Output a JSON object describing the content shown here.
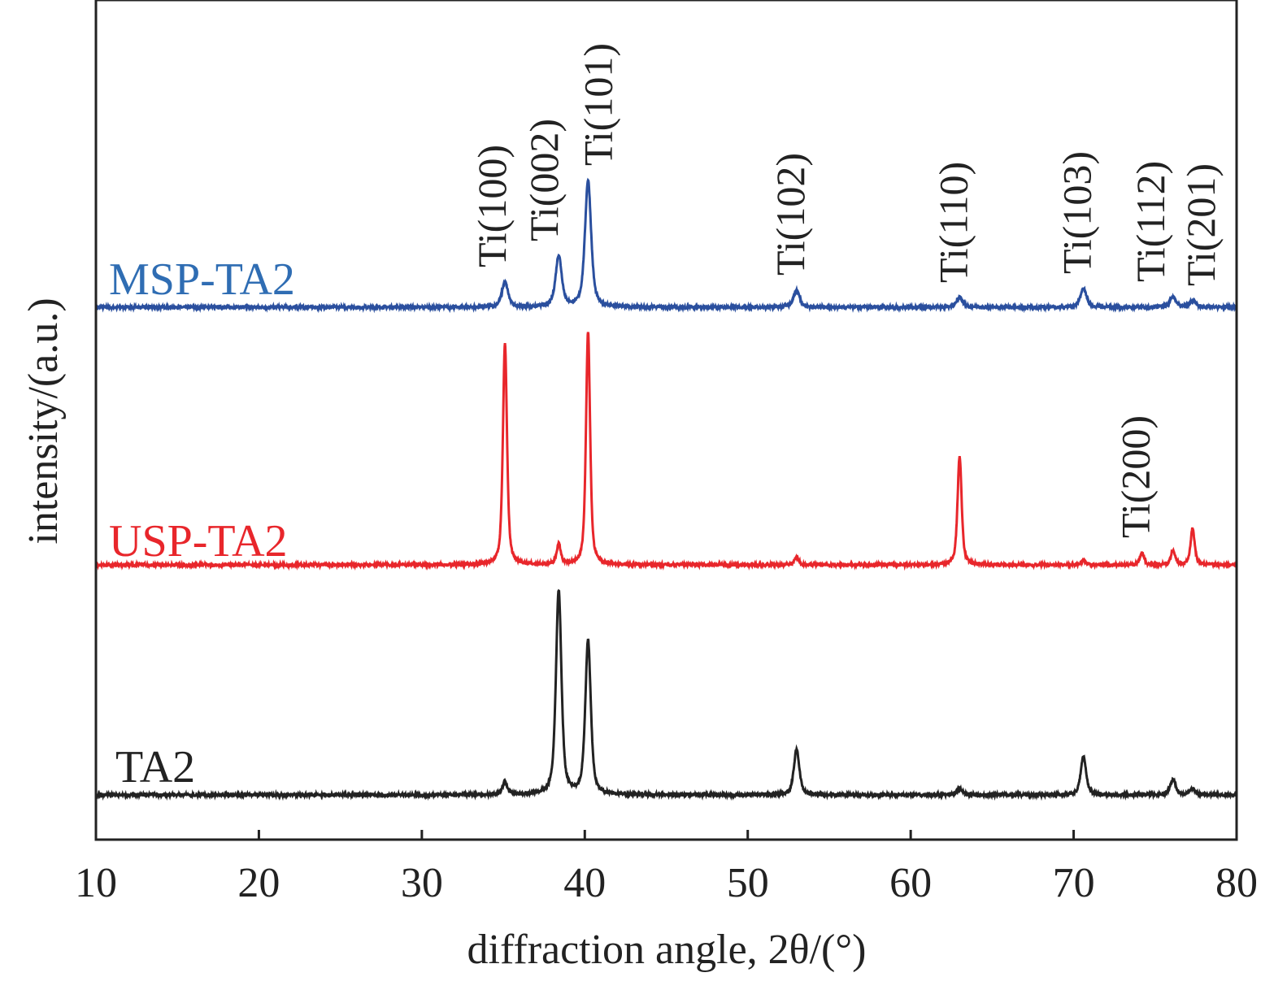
{
  "chart_data": {
    "type": "line",
    "title": "",
    "xlabel": "diffraction angle, 2θ/(°)",
    "ylabel": "intensity/(a.u.)",
    "xlim": [
      10,
      80
    ],
    "ylim": [
      0,
      1033
    ],
    "xticks": [
      10,
      20,
      30,
      40,
      50,
      60,
      70,
      80
    ],
    "yticks": [],
    "grid": false,
    "legend": "inline labels at left of each trace",
    "series": [
      {
        "name": "MSP-TA2",
        "color": "#2a4f9e",
        "label_color": "#2f6db3",
        "offset": 655,
        "fwhm": 0.45,
        "peaks": [
          [
            35.1,
            31
          ],
          [
            38.4,
            63
          ],
          [
            40.2,
            156
          ],
          [
            53.0,
            21
          ],
          [
            63.0,
            12
          ],
          [
            70.6,
            23
          ],
          [
            76.1,
            13
          ],
          [
            77.3,
            8
          ]
        ]
      },
      {
        "name": "USP-TA2",
        "color": "#e8262b",
        "label_color": "#e8262b",
        "offset": 338,
        "fwhm": 0.3,
        "peaks": [
          [
            35.1,
            272
          ],
          [
            38.4,
            25
          ],
          [
            40.2,
            287
          ],
          [
            53.0,
            10
          ],
          [
            63.0,
            134
          ],
          [
            70.6,
            6
          ],
          [
            74.2,
            15
          ],
          [
            76.1,
            18
          ],
          [
            77.3,
            45
          ]
        ]
      },
      {
        "name": "TA2",
        "color": "#222222",
        "label_color": "#222222",
        "offset": 55,
        "fwhm": 0.4,
        "peaks": [
          [
            35.1,
            15
          ],
          [
            38.4,
            251
          ],
          [
            40.2,
            189
          ],
          [
            53.0,
            56
          ],
          [
            63.0,
            8
          ],
          [
            70.6,
            47
          ],
          [
            76.1,
            19
          ],
          [
            77.3,
            8
          ]
        ]
      }
    ],
    "annotations": [
      {
        "text": "Ti(100)",
        "x": 34.3,
        "series": "MSP-TA2",
        "peak": 35.1
      },
      {
        "text": "Ti(002)",
        "x": 37.5,
        "series": "MSP-TA2",
        "peak": 38.4
      },
      {
        "text": "Ti(101)",
        "x": 40.8,
        "series": "MSP-TA2",
        "peak": 40.2
      },
      {
        "text": "Ti(102)",
        "x": 52.6,
        "series": "MSP-TA2",
        "peak": 53.0
      },
      {
        "text": "Ti(110)",
        "x": 62.6,
        "series": "MSP-TA2",
        "peak": 63.0
      },
      {
        "text": "Ti(103)",
        "x": 70.2,
        "series": "MSP-TA2",
        "peak": 70.6
      },
      {
        "text": "Ti(112)",
        "x": 74.7,
        "series": "MSP-TA2",
        "peak": 76.1
      },
      {
        "text": "Ti(201)",
        "x": 77.8,
        "series": "MSP-TA2",
        "peak": 77.3
      },
      {
        "text": "Ti(200)",
        "x": 73.8,
        "series": "USP-TA2",
        "peak": 74.2
      }
    ]
  }
}
